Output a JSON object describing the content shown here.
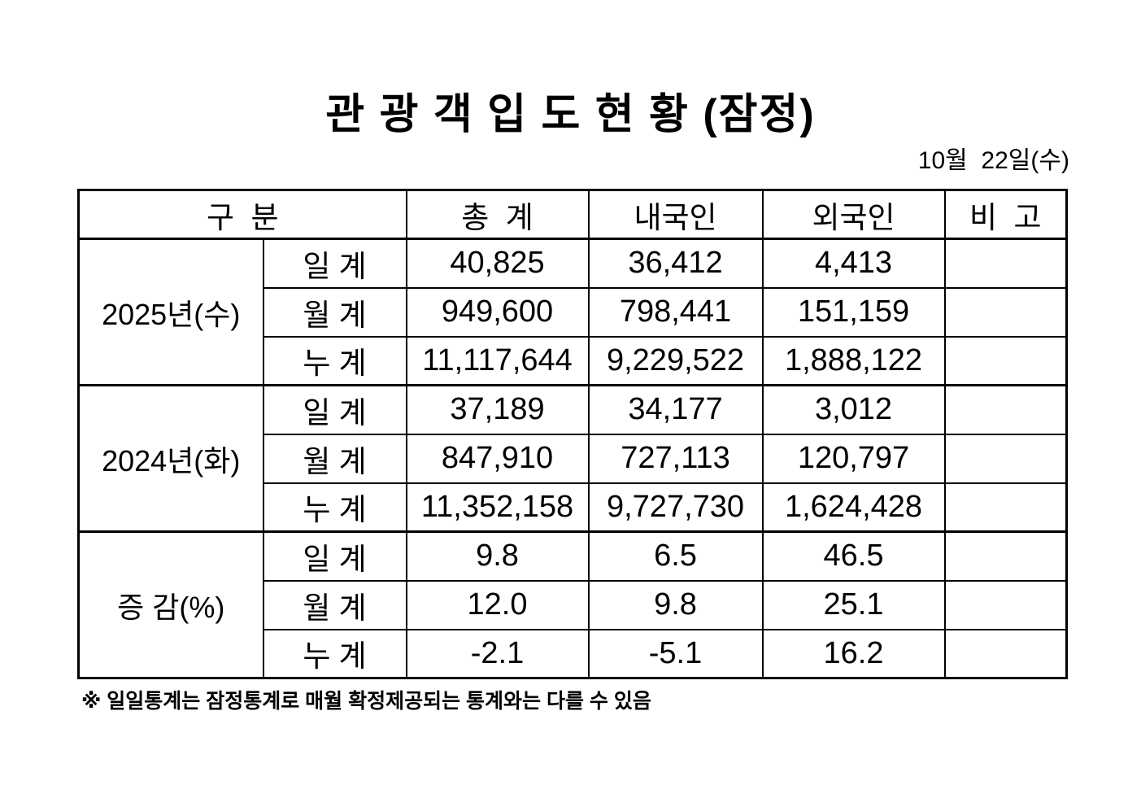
{
  "title": "관 광 객 입 도 현 황 (잠정)",
  "date": "10월  22일(수)",
  "table": {
    "headers": [
      "구  분",
      "총  계",
      "내국인",
      "외국인",
      "비  고"
    ],
    "groups": [
      {
        "label": "2025년(수)",
        "rows": [
          {
            "label": "일 계",
            "values": [
              "40,825",
              "36,412",
              "4,413",
              ""
            ]
          },
          {
            "label": "월 계",
            "values": [
              "949,600",
              "798,441",
              "151,159",
              ""
            ]
          },
          {
            "label": "누 계",
            "values": [
              "11,117,644",
              "9,229,522",
              "1,888,122",
              ""
            ]
          }
        ]
      },
      {
        "label": "2024년(화)",
        "rows": [
          {
            "label": "일 계",
            "values": [
              "37,189",
              "34,177",
              "3,012",
              ""
            ]
          },
          {
            "label": "월 계",
            "values": [
              "847,910",
              "727,113",
              "120,797",
              ""
            ]
          },
          {
            "label": "누 계",
            "values": [
              "11,352,158",
              "9,727,730",
              "1,624,428",
              ""
            ]
          }
        ]
      },
      {
        "label": "증 감(%)",
        "rows": [
          {
            "label": "일 계",
            "values": [
              "9.8",
              "6.5",
              "46.5",
              ""
            ]
          },
          {
            "label": "월 계",
            "values": [
              "12.0",
              "9.8",
              "25.1",
              ""
            ]
          },
          {
            "label": "누 계",
            "values": [
              "-2.1",
              "-5.1",
              "16.2",
              ""
            ]
          }
        ]
      }
    ]
  },
  "footnote": "※ 일일통계는 잠정통계로 매월 확정제공되는 통계와는 다를 수 있음"
}
